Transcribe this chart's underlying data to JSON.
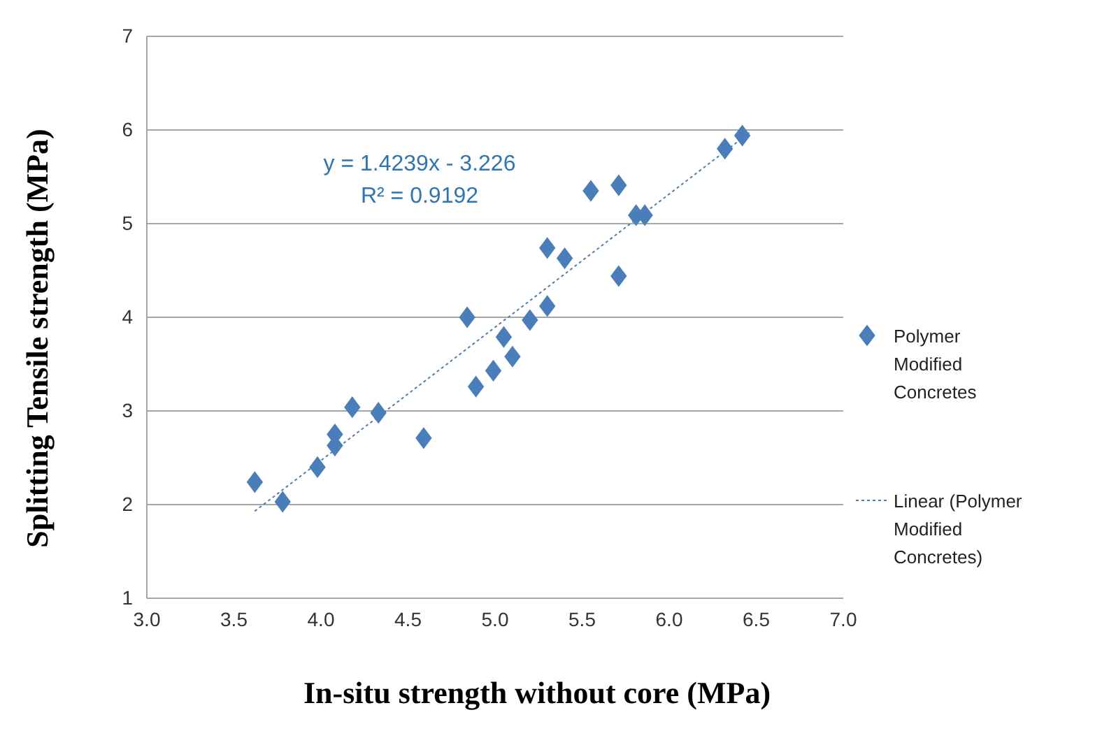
{
  "chart_data": {
    "type": "scatter",
    "xlabel": "In-situ strength without core (MPa)",
    "ylabel": "Splitting Tensile strength (MPa)",
    "xlim": [
      3.0,
      7.0
    ],
    "xticks": [
      {
        "value": 3,
        "label": "3.0"
      },
      {
        "value": 3.5,
        "label": "3.5"
      },
      {
        "value": 4,
        "label": "4.0"
      },
      {
        "value": 4.5,
        "label": "4.5"
      },
      {
        "value": 5,
        "label": "5.0"
      },
      {
        "value": 5.5,
        "label": "5.5"
      },
      {
        "value": 6,
        "label": "6.0"
      },
      {
        "value": 6.5,
        "label": "6.5"
      },
      {
        "value": 7,
        "label": "7.0"
      }
    ],
    "ylim": [
      1,
      7
    ],
    "yticks": [
      1,
      2,
      3,
      4,
      5,
      6,
      7
    ],
    "grid": "y",
    "legend": "right",
    "annotations": [
      "y = 1.4239x - 3.226",
      "R² = 0.9192"
    ],
    "series": [
      {
        "name": "Polymer Modified Concretes",
        "marker": "diamond",
        "color": "#4a7ebb",
        "x": [
          3.62,
          3.78,
          3.98,
          4.08,
          4.08,
          4.18,
          4.33,
          4.59,
          4.84,
          4.89,
          4.99,
          5.05,
          5.1,
          5.2,
          5.3,
          5.3,
          5.4,
          5.55,
          5.71,
          5.71,
          5.81,
          5.86,
          6.32,
          6.42
        ],
        "values": [
          2.24,
          2.03,
          2.4,
          2.75,
          2.63,
          3.04,
          2.98,
          2.71,
          4.0,
          3.26,
          3.43,
          3.79,
          3.58,
          3.97,
          4.12,
          4.74,
          4.63,
          5.35,
          5.41,
          4.44,
          5.09,
          5.09,
          5.8,
          5.94
        ]
      },
      {
        "name": "Linear (Polymer Modified Concretes)",
        "type": "line",
        "marker": "none",
        "color": "#4a7ebb",
        "line_style": "dotted",
        "x": [
          3.62,
          6.46
        ],
        "values": [
          1.93,
          5.97
        ]
      }
    ]
  }
}
